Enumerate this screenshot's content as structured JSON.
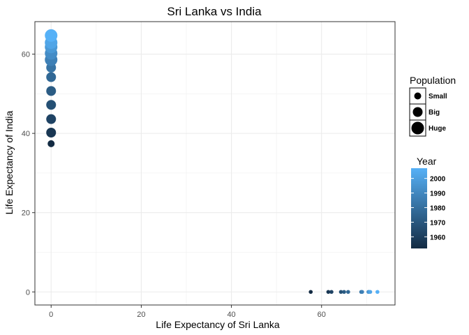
{
  "chart_data": {
    "type": "scatter",
    "title": "Sri Lanka vs India",
    "xlabel": "Life Expectancy of Sri Lanka",
    "ylabel": "Life Expectancy of India",
    "xlim": [
      -3.6,
      76.3
    ],
    "ylim": [
      -3.3,
      68.2
    ],
    "xticks": [
      0,
      20,
      40,
      60
    ],
    "yticks": [
      0,
      20,
      40,
      60
    ],
    "grid": true,
    "series": [
      {
        "points": [
          {
            "x": 0,
            "y": 37.4,
            "year": 1952,
            "size": "Small"
          },
          {
            "x": 0,
            "y": 40.2,
            "year": 1957,
            "size": "Big"
          },
          {
            "x": 0,
            "y": 43.6,
            "year": 1962,
            "size": "Big"
          },
          {
            "x": 0,
            "y": 47.2,
            "year": 1967,
            "size": "Big"
          },
          {
            "x": 0,
            "y": 50.7,
            "year": 1972,
            "size": "Big"
          },
          {
            "x": 0,
            "y": 54.2,
            "year": 1977,
            "size": "Big"
          },
          {
            "x": 0,
            "y": 56.6,
            "year": 1982,
            "size": "Big"
          },
          {
            "x": 0,
            "y": 58.6,
            "year": 1987,
            "size": "Huge"
          },
          {
            "x": 0,
            "y": 60.2,
            "year": 1992,
            "size": "Huge"
          },
          {
            "x": 0,
            "y": 61.8,
            "year": 1997,
            "size": "Huge"
          },
          {
            "x": 0,
            "y": 62.9,
            "year": 2002,
            "size": "Huge"
          },
          {
            "x": 0,
            "y": 64.7,
            "year": 2007,
            "size": "Huge"
          }
        ]
      },
      {
        "points": [
          {
            "x": 57.6,
            "y": 0,
            "year": 1952
          },
          {
            "x": 61.5,
            "y": 0,
            "year": 1957
          },
          {
            "x": 62.2,
            "y": 0,
            "year": 1962
          },
          {
            "x": 64.3,
            "y": 0,
            "year": 1967
          },
          {
            "x": 65.0,
            "y": 0,
            "year": 1972
          },
          {
            "x": 65.9,
            "y": 0,
            "year": 1977
          },
          {
            "x": 68.8,
            "y": 0,
            "year": 1982
          },
          {
            "x": 69.0,
            "y": 0,
            "year": 1987
          },
          {
            "x": 70.4,
            "y": 0,
            "year": 1992
          },
          {
            "x": 70.5,
            "y": 0,
            "year": 1997
          },
          {
            "x": 70.8,
            "y": 0,
            "year": 2002
          },
          {
            "x": 72.4,
            "y": 0,
            "year": 2007
          }
        ]
      }
    ],
    "legends": {
      "population": {
        "title": "Population",
        "entries": [
          "Small",
          "Big",
          "Huge"
        ]
      },
      "year": {
        "title": "Year",
        "ticks": [
          1960,
          1970,
          1980,
          1990,
          2000
        ],
        "range": [
          1952,
          2007
        ],
        "color_low": "#132B43",
        "color_high": "#56B1F7"
      }
    },
    "legend_position": "right"
  }
}
